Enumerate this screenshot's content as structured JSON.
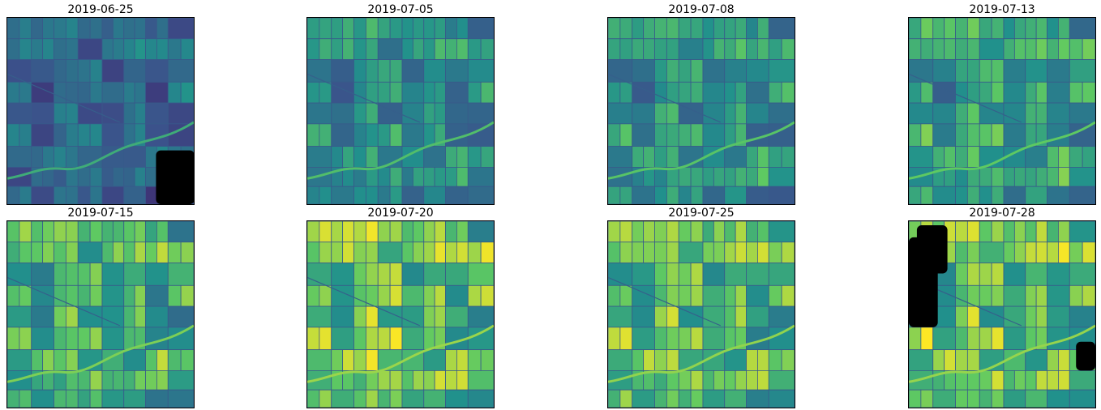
{
  "figure": {
    "colormap": "viridis",
    "mask_color": "#000000",
    "panels": [
      {
        "title": "2019-06-25",
        "greenness": 0.18
      },
      {
        "title": "2019-07-05",
        "greenness": 0.38
      },
      {
        "title": "2019-07-08",
        "greenness": 0.44
      },
      {
        "title": "2019-07-13",
        "greenness": 0.5
      },
      {
        "title": "2019-07-15",
        "greenness": 0.62
      },
      {
        "title": "2019-07-20",
        "greenness": 0.74
      },
      {
        "title": "2019-07-25",
        "greenness": 0.7
      },
      {
        "title": "2019-07-28",
        "greenness": 0.72
      }
    ]
  }
}
